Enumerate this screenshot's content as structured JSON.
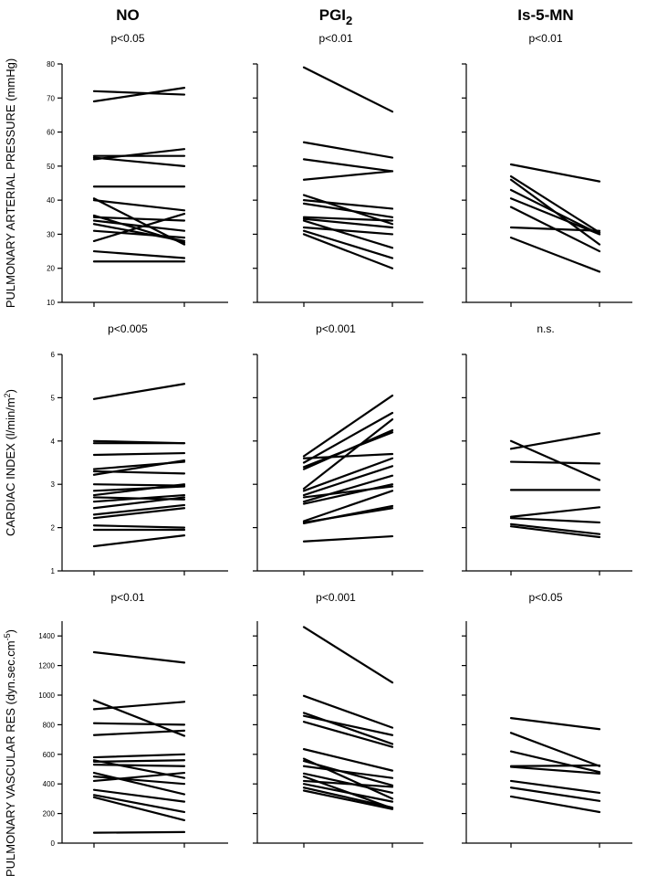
{
  "columns": [
    {
      "label": "NO",
      "sub": ""
    },
    {
      "label": "PGI",
      "sub": "2"
    },
    {
      "label": "Is-5-MN",
      "sub": ""
    }
  ],
  "rows": [
    {
      "label": "PULMONARY ARTERIAL PRESSURE (mmHg)",
      "label_parts": [
        {
          "t": "PULMONARY ARTERIAL PRESSURE (mmHg)"
        }
      ]
    },
    {
      "label": "CARDIAC INDEX (l/min/m2)",
      "label_parts": [
        {
          "t": "CARDIAC INDEX (l/min/m"
        },
        {
          "t": "2",
          "sup": true
        },
        {
          "t": ")"
        }
      ]
    },
    {
      "label": "PULMONARY VASCULAR RES (dyn.sec.cm-5)",
      "label_parts": [
        {
          "t": "PULMONARY VASCULAR RES (dyn.sec.cm"
        },
        {
          "t": "-5",
          "sup": true
        },
        {
          "t": ")"
        }
      ]
    }
  ],
  "chart_data": [
    {
      "type": "line",
      "row": 0,
      "col": 0,
      "annotation": "p<0.05",
      "ylim": [
        10,
        80
      ],
      "yticks": [
        10,
        20,
        30,
        40,
        50,
        60,
        70,
        80
      ],
      "show_tick_labels": true,
      "series": [
        [
          72,
          71
        ],
        [
          69,
          73
        ],
        [
          53,
          53
        ],
        [
          52,
          55
        ],
        [
          52.5,
          50
        ],
        [
          44,
          44
        ],
        [
          40.5,
          27
        ],
        [
          40,
          37
        ],
        [
          35.5,
          27.5
        ],
        [
          35,
          34
        ],
        [
          34,
          31
        ],
        [
          33,
          28
        ],
        [
          31,
          29
        ],
        [
          28,
          36
        ],
        [
          25,
          23
        ],
        [
          22,
          22
        ]
      ]
    },
    {
      "type": "line",
      "row": 0,
      "col": 1,
      "annotation": "p<0.01",
      "ylim": [
        10,
        80
      ],
      "yticks": [
        10,
        20,
        30,
        40,
        50,
        60,
        70,
        80
      ],
      "show_tick_labels": false,
      "series": [
        [
          79,
          66
        ],
        [
          57,
          52.5
        ],
        [
          52,
          48.5
        ],
        [
          46,
          48.5
        ],
        [
          41.5,
          33
        ],
        [
          40,
          37.5
        ],
        [
          39,
          35
        ],
        [
          35,
          34
        ],
        [
          34.5,
          32
        ],
        [
          34,
          26
        ],
        [
          32,
          30
        ],
        [
          31,
          23
        ],
        [
          30,
          20
        ]
      ]
    },
    {
      "type": "line",
      "row": 0,
      "col": 2,
      "annotation": "p<0.01",
      "ylim": [
        10,
        80
      ],
      "yticks": [
        10,
        20,
        30,
        40,
        50,
        60,
        70,
        80
      ],
      "show_tick_labels": false,
      "series": [
        [
          50.5,
          45.5
        ],
        [
          47,
          30.5
        ],
        [
          46,
          27
        ],
        [
          43,
          30
        ],
        [
          40.5,
          30
        ],
        [
          38,
          25
        ],
        [
          32,
          31
        ],
        [
          29,
          19
        ]
      ]
    },
    {
      "type": "line",
      "row": 1,
      "col": 0,
      "annotation": "p<0.005",
      "ylim": [
        1,
        6
      ],
      "yticks": [
        1,
        2,
        3,
        4,
        5,
        6
      ],
      "show_tick_labels": true,
      "series": [
        [
          4.97,
          5.32
        ],
        [
          4.0,
          3.95
        ],
        [
          3.95,
          3.95
        ],
        [
          3.68,
          3.72
        ],
        [
          3.35,
          3.52
        ],
        [
          3.3,
          3.25
        ],
        [
          3.22,
          3.55
        ],
        [
          3.0,
          2.97
        ],
        [
          2.85,
          2.95
        ],
        [
          2.75,
          3.0
        ],
        [
          2.7,
          2.65
        ],
        [
          2.6,
          2.75
        ],
        [
          2.45,
          2.7
        ],
        [
          2.3,
          2.52
        ],
        [
          2.22,
          2.45
        ],
        [
          2.05,
          2.0
        ],
        [
          1.95,
          1.95
        ],
        [
          1.57,
          1.82
        ]
      ]
    },
    {
      "type": "line",
      "row": 1,
      "col": 1,
      "annotation": "p<0.001",
      "ylim": [
        1,
        6
      ],
      "yticks": [
        1,
        2,
        3,
        4,
        5,
        6
      ],
      "show_tick_labels": false,
      "series": [
        [
          3.65,
          5.05
        ],
        [
          3.6,
          3.7
        ],
        [
          3.5,
          4.65
        ],
        [
          3.4,
          4.2
        ],
        [
          3.35,
          4.25
        ],
        [
          2.9,
          4.5
        ],
        [
          2.85,
          3.6
        ],
        [
          2.75,
          3.42
        ],
        [
          2.7,
          2.95
        ],
        [
          2.6,
          3.2
        ],
        [
          2.55,
          3.0
        ],
        [
          2.15,
          2.85
        ],
        [
          2.12,
          2.45
        ],
        [
          2.1,
          2.5
        ],
        [
          1.68,
          1.8
        ]
      ]
    },
    {
      "type": "line",
      "row": 1,
      "col": 2,
      "annotation": "n.s.",
      "ylim": [
        1,
        6
      ],
      "yticks": [
        1,
        2,
        3,
        4,
        5,
        6
      ],
      "show_tick_labels": false,
      "series": [
        [
          4.0,
          3.1
        ],
        [
          3.82,
          4.18
        ],
        [
          3.52,
          3.48
        ],
        [
          2.87,
          2.87
        ],
        [
          2.25,
          2.47
        ],
        [
          2.22,
          2.12
        ],
        [
          2.08,
          1.85
        ],
        [
          2.03,
          1.78
        ]
      ]
    },
    {
      "type": "line",
      "row": 2,
      "col": 0,
      "annotation": "p<0.01",
      "ylim": [
        0,
        1500
      ],
      "yticks": [
        0,
        200,
        400,
        600,
        800,
        1000,
        1200,
        1400
      ],
      "show_tick_labels": true,
      "series": [
        [
          1290,
          1220
        ],
        [
          965,
          725
        ],
        [
          905,
          955
        ],
        [
          810,
          800
        ],
        [
          730,
          760
        ],
        [
          580,
          600
        ],
        [
          560,
          440
        ],
        [
          550,
          560
        ],
        [
          530,
          520
        ],
        [
          475,
          330
        ],
        [
          450,
          400
        ],
        [
          420,
          475
        ],
        [
          360,
          280
        ],
        [
          325,
          210
        ],
        [
          310,
          155
        ],
        [
          70,
          75
        ]
      ]
    },
    {
      "type": "line",
      "row": 2,
      "col": 1,
      "annotation": "p<0.001",
      "ylim": [
        0,
        1500
      ],
      "yticks": [
        0,
        200,
        400,
        600,
        800,
        1000,
        1200,
        1400
      ],
      "show_tick_labels": false,
      "series": [
        [
          1460,
          1085
        ],
        [
          995,
          780
        ],
        [
          880,
          670
        ],
        [
          860,
          730
        ],
        [
          820,
          650
        ],
        [
          635,
          490
        ],
        [
          570,
          300
        ],
        [
          555,
          390
        ],
        [
          520,
          440
        ],
        [
          470,
          340
        ],
        [
          450,
          235
        ],
        [
          420,
          380
        ],
        [
          400,
          280
        ],
        [
          375,
          240
        ],
        [
          355,
          230
        ]
      ]
    },
    {
      "type": "line",
      "row": 2,
      "col": 2,
      "annotation": "p<0.05",
      "ylim": [
        0,
        1500
      ],
      "yticks": [
        0,
        200,
        400,
        600,
        800,
        1000,
        1200,
        1400
      ],
      "show_tick_labels": false,
      "series": [
        [
          845,
          770
        ],
        [
          745,
          520
        ],
        [
          620,
          480
        ],
        [
          520,
          525
        ],
        [
          515,
          470
        ],
        [
          420,
          340
        ],
        [
          375,
          285
        ],
        [
          315,
          210
        ]
      ]
    }
  ]
}
